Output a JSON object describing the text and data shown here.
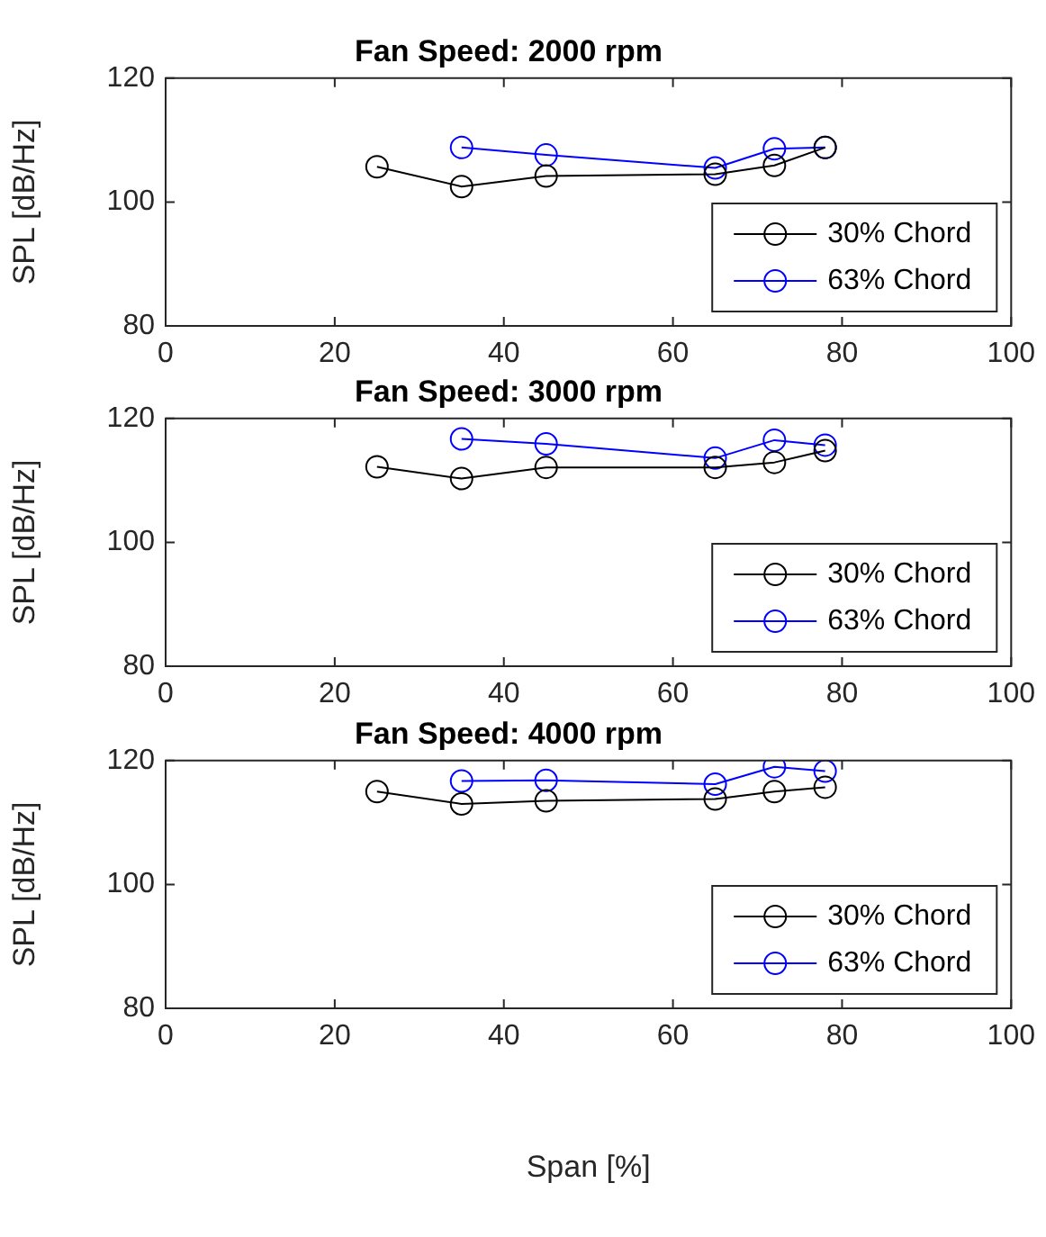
{
  "chart_data": [
    {
      "type": "line",
      "title": "Fan Speed: 2000 rpm",
      "ylabel": "SPL [dB/Hz]",
      "xlim": [
        0,
        100
      ],
      "xticks": [
        0,
        20,
        40,
        60,
        80,
        100
      ],
      "ylim": [
        80,
        120
      ],
      "yticks": [
        80,
        100,
        120
      ],
      "legend": "bottom right",
      "marker": "circle",
      "line_style": "solid",
      "series": [
        {
          "name": "30% Chord",
          "color": "#000000",
          "x": [
            25,
            35,
            45,
            65,
            72,
            78
          ],
          "values": [
            105.7,
            102.5,
            104.2,
            104.5,
            105.9,
            108.8
          ]
        },
        {
          "name": "63% Chord",
          "color": "#0000ff",
          "x": [
            35,
            45,
            65,
            72,
            78
          ],
          "values": [
            108.8,
            107.6,
            105.5,
            108.6,
            108.8
          ]
        }
      ]
    },
    {
      "type": "line",
      "title": "Fan Speed: 3000 rpm",
      "ylabel": "SPL [dB/Hz]",
      "xlim": [
        0,
        100
      ],
      "xticks": [
        0,
        20,
        40,
        60,
        80,
        100
      ],
      "ylim": [
        80,
        120
      ],
      "yticks": [
        80,
        100,
        120
      ],
      "legend": "bottom right",
      "marker": "circle",
      "line_style": "solid",
      "series": [
        {
          "name": "30% Chord",
          "color": "#000000",
          "x": [
            25,
            35,
            45,
            65,
            72,
            78
          ],
          "values": [
            112.2,
            110.3,
            112.1,
            112.1,
            112.9,
            114.8
          ]
        },
        {
          "name": "63% Chord",
          "color": "#0000ff",
          "x": [
            35,
            45,
            65,
            72,
            78
          ],
          "values": [
            116.7,
            115.9,
            113.6,
            116.5,
            115.7
          ]
        }
      ]
    },
    {
      "type": "line",
      "title": "Fan Speed: 4000 rpm",
      "xlabel": "Span [%]",
      "ylabel": "SPL [dB/Hz]",
      "xlim": [
        0,
        100
      ],
      "xticks": [
        0,
        20,
        40,
        60,
        80,
        100
      ],
      "ylim": [
        80,
        120
      ],
      "yticks": [
        80,
        100,
        120
      ],
      "legend": "bottom right",
      "marker": "circle",
      "line_style": "solid",
      "series": [
        {
          "name": "30% Chord",
          "color": "#000000",
          "x": [
            25,
            35,
            45,
            65,
            72,
            78
          ],
          "values": [
            115.0,
            113.0,
            113.5,
            113.8,
            115.0,
            115.7
          ]
        },
        {
          "name": "63% Chord",
          "color": "#0000ff",
          "x": [
            35,
            45,
            65,
            72,
            78
          ],
          "values": [
            116.7,
            116.8,
            116.2,
            119.0,
            118.3
          ]
        }
      ]
    }
  ]
}
